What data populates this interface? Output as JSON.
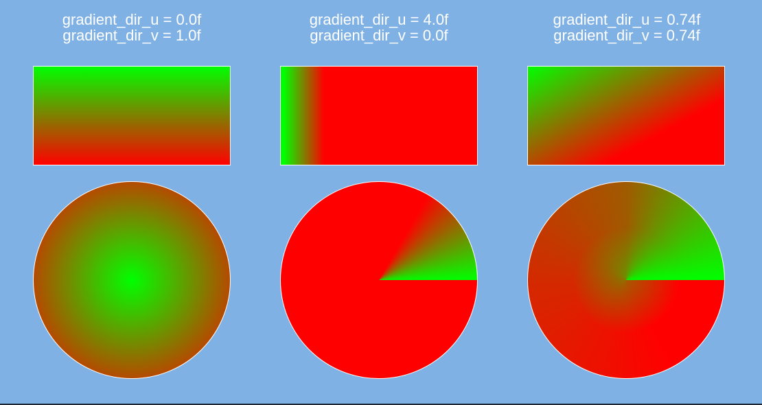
{
  "panels": [
    {
      "label_u": "gradient_dir_u = 0.0f",
      "label_v": "gradient_dir_v = 1.0f"
    },
    {
      "label_u": "gradient_dir_u = 4.0f",
      "label_v": "gradient_dir_v = 0.0f"
    },
    {
      "label_u": "gradient_dir_u = 0.74f",
      "label_v": "gradient_dir_v = 0.74f"
    }
  ],
  "colors": {
    "background": "#7fb1e4",
    "gradient_start": "#00ff00",
    "gradient_end": "#ff0000",
    "border": "#ffffff"
  }
}
